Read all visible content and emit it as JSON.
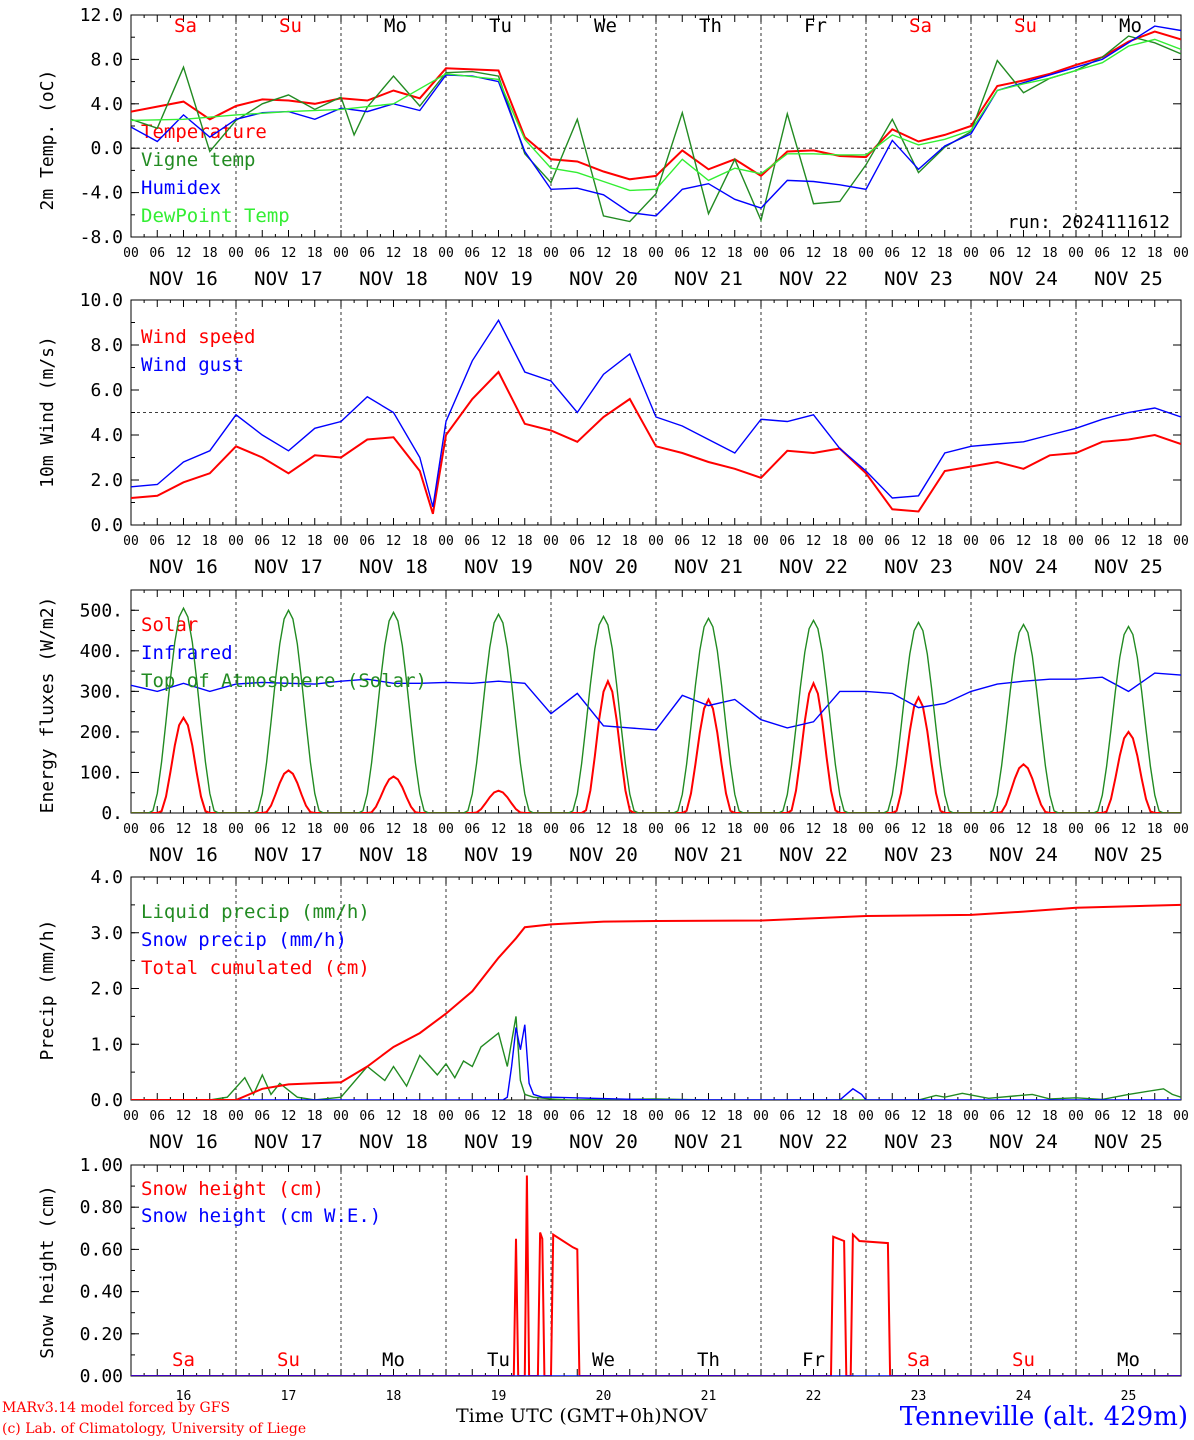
{
  "colors": {
    "red": "#ff0000",
    "green": "#228b22",
    "blue": "#0000ff",
    "lightgreen": "#33ee33",
    "black": "#000000"
  },
  "days": [
    "NOV 16",
    "NOV 17",
    "NOV 18",
    "NOV 19",
    "NOV 20",
    "NOV 21",
    "NOV 22",
    "NOV 23",
    "NOV 24",
    "NOV 25"
  ],
  "hour_ticks": [
    "00",
    "06",
    "12",
    "18"
  ],
  "weekdays": [
    "Sa",
    "Su",
    "Mo",
    "Tu",
    "We",
    "Th",
    "Fr",
    "Sa",
    "Su",
    "Mo"
  ],
  "weekend_flags": [
    true,
    true,
    false,
    false,
    false,
    false,
    false,
    true,
    true,
    false
  ],
  "day_numbers": [
    "16",
    "17",
    "18",
    "19",
    "20",
    "21",
    "22",
    "23",
    "24",
    "25"
  ],
  "footer": {
    "credit_line1": "MARv3.14 model forced by GFS",
    "credit_line2": "(c) Lab. of Climatology, University of Liege",
    "x_title": "Time UTC (GMT+0h)",
    "month": "NOV",
    "location": "Tenneville (alt. 429m)"
  },
  "chart_data": [
    {
      "type": "line",
      "ylabel": "2m Temp. (oC)",
      "ylim": [
        -8,
        12
      ],
      "yticks": [
        "-8.0",
        "-4.0",
        "0.0",
        "4.0",
        "8.0",
        "12.0"
      ],
      "ytick_values": [
        -8,
        -4,
        0,
        4,
        8,
        12
      ],
      "ref_line": 0,
      "annotation": "run: 2024111612",
      "x_unit": "hours since 2024-11-16 00 UTC",
      "series": [
        {
          "name": "Temperature",
          "color": "red",
          "x": [
            0,
            12,
            18,
            24,
            30,
            36,
            42,
            48,
            54,
            60,
            66,
            72,
            78,
            84,
            90,
            96,
            102,
            108,
            114,
            120,
            126,
            132,
            138,
            144,
            150,
            156,
            162,
            168,
            174,
            180,
            186,
            192,
            198,
            204,
            210,
            216,
            222,
            228,
            234,
            240
          ],
          "y": [
            3.3,
            4.2,
            2.6,
            3.8,
            4.4,
            4.3,
            4.0,
            4.5,
            4.3,
            5.2,
            4.5,
            7.2,
            7.1,
            7.0,
            1.0,
            -1.0,
            -1.2,
            -2.1,
            -2.8,
            -2.5,
            -0.2,
            -1.9,
            -1.0,
            -2.5,
            -0.3,
            -0.2,
            -0.7,
            -0.8,
            1.7,
            0.6,
            1.2,
            2.0,
            5.6,
            6.1,
            6.7,
            7.5,
            8.2,
            9.6,
            10.5,
            9.8
          ]
        },
        {
          "name": "Vigne temp",
          "color": "green",
          "x": [
            0,
            6,
            12,
            18,
            24,
            30,
            36,
            42,
            48,
            51,
            54,
            60,
            66,
            72,
            78,
            84,
            90,
            96,
            102,
            108,
            114,
            120,
            126,
            132,
            138,
            144,
            150,
            156,
            162,
            168,
            174,
            180,
            186,
            192,
            198,
            204,
            210,
            216,
            222,
            228,
            234,
            240
          ],
          "y": [
            2.6,
            1.8,
            7.3,
            -0.3,
            2.5,
            4.0,
            4.8,
            3.5,
            4.6,
            1.2,
            3.7,
            6.5,
            3.8,
            6.8,
            6.9,
            6.5,
            -0.5,
            -3.1,
            2.6,
            -6.1,
            -6.6,
            -4.1,
            3.2,
            -5.9,
            -1.0,
            -6.5,
            3.1,
            -5.0,
            -4.8,
            -1.5,
            2.6,
            -2.2,
            0.1,
            1.5,
            7.9,
            5.0,
            6.3,
            7.0,
            8.2,
            10.1,
            9.5,
            8.5
          ]
        },
        {
          "name": "Humidex",
          "color": "blue",
          "x": [
            0,
            6,
            12,
            18,
            24,
            30,
            36,
            42,
            48,
            54,
            60,
            66,
            72,
            78,
            84,
            90,
            96,
            102,
            108,
            114,
            120,
            126,
            132,
            138,
            144,
            150,
            156,
            162,
            168,
            174,
            180,
            186,
            192,
            198,
            204,
            210,
            216,
            222,
            228,
            234,
            240
          ],
          "y": [
            1.9,
            0.6,
            3.0,
            1.0,
            2.6,
            3.2,
            3.3,
            2.6,
            3.6,
            3.3,
            4.0,
            3.4,
            6.6,
            6.5,
            6.0,
            -0.3,
            -3.7,
            -3.6,
            -4.2,
            -5.8,
            -6.1,
            -3.7,
            -3.2,
            -4.6,
            -5.4,
            -2.9,
            -3.0,
            -3.3,
            -3.7,
            0.7,
            -1.9,
            0.2,
            1.3,
            5.2,
            5.9,
            6.6,
            7.3,
            8.0,
            9.5,
            11.0,
            10.6
          ]
        },
        {
          "name": "DewPoint Temp",
          "color": "lightgreen",
          "x": [
            0,
            12,
            24,
            36,
            48,
            60,
            72,
            84,
            90,
            96,
            102,
            108,
            114,
            120,
            126,
            132,
            138,
            144,
            150,
            156,
            162,
            168,
            174,
            180,
            186,
            192,
            198,
            204,
            210,
            216,
            222,
            228,
            234,
            240
          ],
          "y": [
            2.5,
            2.6,
            3.0,
            3.3,
            3.5,
            4.0,
            6.7,
            6.2,
            0.8,
            -1.8,
            -2.2,
            -3.0,
            -3.8,
            -3.7,
            -1.0,
            -2.9,
            -1.8,
            -2.3,
            -0.5,
            -0.5,
            -0.6,
            -0.6,
            1.2,
            0.3,
            0.8,
            1.6,
            5.2,
            5.8,
            6.3,
            7.0,
            7.7,
            9.2,
            9.8,
            8.9
          ]
        }
      ]
    },
    {
      "type": "line",
      "ylabel": "10m Wind (m/s)",
      "ylim": [
        0,
        10
      ],
      "yticks": [
        "0.0",
        "2.0",
        "4.0",
        "6.0",
        "8.0",
        "10.0"
      ],
      "ytick_values": [
        0,
        2,
        4,
        6,
        8,
        10
      ],
      "ref_line": 5,
      "x_unit": "hours since 2024-11-16 00 UTC",
      "series": [
        {
          "name": "Wind speed",
          "color": "red",
          "x": [
            0,
            6,
            12,
            18,
            24,
            30,
            36,
            42,
            48,
            54,
            60,
            66,
            69,
            72,
            78,
            84,
            90,
            96,
            102,
            108,
            114,
            120,
            126,
            132,
            138,
            144,
            150,
            156,
            162,
            168,
            174,
            180,
            186,
            192,
            198,
            204,
            210,
            216,
            222,
            228,
            234,
            240
          ],
          "y": [
            1.2,
            1.3,
            1.9,
            2.3,
            3.5,
            3.0,
            2.3,
            3.1,
            3.0,
            3.8,
            3.9,
            2.4,
            0.5,
            4.0,
            5.6,
            6.8,
            4.5,
            4.2,
            3.7,
            4.8,
            5.6,
            3.5,
            3.2,
            2.8,
            2.5,
            2.1,
            3.3,
            3.2,
            3.4,
            2.3,
            0.7,
            0.6,
            2.4,
            2.6,
            2.8,
            2.5,
            3.1,
            3.2,
            3.7,
            3.8,
            4.0,
            3.6
          ]
        },
        {
          "name": "Wind gust",
          "color": "blue",
          "x": [
            0,
            6,
            12,
            18,
            24,
            30,
            36,
            42,
            48,
            54,
            60,
            66,
            69,
            72,
            78,
            84,
            90,
            96,
            102,
            108,
            114,
            120,
            126,
            132,
            138,
            144,
            150,
            156,
            162,
            168,
            174,
            180,
            186,
            192,
            198,
            204,
            210,
            216,
            222,
            228,
            234,
            240
          ],
          "y": [
            1.7,
            1.8,
            2.8,
            3.3,
            4.9,
            4.0,
            3.3,
            4.3,
            4.6,
            5.7,
            5.0,
            3.0,
            0.8,
            4.6,
            7.3,
            9.1,
            6.8,
            6.4,
            5.0,
            6.7,
            7.6,
            4.8,
            4.4,
            3.8,
            3.2,
            4.7,
            4.6,
            4.9,
            3.4,
            2.4,
            1.2,
            1.3,
            3.2,
            3.5,
            3.6,
            3.7,
            4.0,
            4.3,
            4.7,
            5.0,
            5.2,
            4.8
          ]
        }
      ]
    },
    {
      "type": "line",
      "ylabel": "Energy fluxes (W/m2)",
      "ylim": [
        0,
        550
      ],
      "yticks": [
        "0.",
        "100.",
        "200.",
        "300.",
        "400.",
        "500."
      ],
      "ytick_values": [
        0,
        100,
        200,
        300,
        400,
        500
      ],
      "x_unit": "hours since 2024-11-16 00 UTC",
      "series": [
        {
          "name": "Solar",
          "color": "red",
          "peak_hours": [
            12,
            36,
            60,
            84,
            109,
            132,
            156,
            180,
            204,
            228
          ],
          "peaks": [
            235,
            105,
            90,
            55,
            325,
            280,
            320,
            285,
            120,
            200
          ]
        },
        {
          "name": "Infrared",
          "color": "blue",
          "x": [
            0,
            6,
            12,
            18,
            24,
            30,
            36,
            42,
            48,
            54,
            60,
            66,
            72,
            78,
            84,
            90,
            96,
            102,
            108,
            114,
            120,
            126,
            132,
            138,
            144,
            150,
            156,
            162,
            168,
            174,
            180,
            186,
            192,
            198,
            204,
            210,
            216,
            222,
            228,
            234,
            240
          ],
          "y": [
            315,
            300,
            320,
            300,
            318,
            322,
            320,
            318,
            325,
            330,
            320,
            320,
            322,
            320,
            325,
            320,
            245,
            295,
            215,
            210,
            205,
            290,
            265,
            280,
            230,
            210,
            225,
            300,
            300,
            295,
            260,
            270,
            300,
            318,
            325,
            330,
            330,
            335,
            300,
            345,
            340
          ]
        },
        {
          "name": "Top of Atmosphere (Solar)",
          "color": "green",
          "peak_hours": [
            12,
            36,
            60,
            84,
            108,
            132,
            156,
            180,
            204,
            228
          ],
          "peaks": [
            505,
            500,
            495,
            490,
            485,
            480,
            475,
            470,
            465,
            460
          ]
        }
      ]
    },
    {
      "type": "line",
      "ylabel": "Precip (mm/h)",
      "ylim": [
        0,
        4
      ],
      "yticks": [
        "0.0",
        "1.0",
        "2.0",
        "3.0",
        "4.0"
      ],
      "ytick_values": [
        0,
        1,
        2,
        3,
        4
      ],
      "x_unit": "hours since 2024-11-16 00 UTC",
      "series": [
        {
          "name": "Liquid precip (mm/h)",
          "color": "green",
          "x": [
            0,
            18,
            22,
            26,
            28,
            30,
            32,
            34,
            38,
            42,
            48,
            54,
            58,
            60,
            63,
            66,
            70,
            72,
            74,
            76,
            78,
            80,
            84,
            86,
            88,
            89,
            90,
            92,
            96,
            100,
            120,
            132,
            168,
            180,
            184,
            186,
            190,
            196,
            206,
            210,
            216,
            222,
            228,
            236,
            238,
            240
          ],
          "y": [
            0,
            0,
            0.05,
            0.4,
            0.1,
            0.45,
            0.1,
            0.3,
            0.05,
            0,
            0.05,
            0.6,
            0.35,
            0.6,
            0.25,
            0.8,
            0.45,
            0.65,
            0.4,
            0.7,
            0.6,
            0.95,
            1.2,
            0.6,
            1.5,
            0.35,
            0.1,
            0.05,
            0.02,
            0,
            0.02,
            0,
            0,
            0,
            0.08,
            0.05,
            0.12,
            0.03,
            0.1,
            0.02,
            0.04,
            0.01,
            0.1,
            0.2,
            0.1,
            0.05
          ]
        },
        {
          "name": "Snow precip (mm/h)",
          "color": "blue",
          "x": [
            0,
            85,
            86,
            87,
            88,
            89,
            90,
            91,
            92,
            94,
            96,
            120,
            162,
            165,
            167,
            168,
            240
          ],
          "y": [
            0,
            0,
            0.05,
            0.6,
            1.3,
            0.9,
            1.35,
            0.3,
            0.1,
            0.05,
            0.05,
            0,
            0,
            0.2,
            0.1,
            0,
            0
          ]
        },
        {
          "name": "Total cumulated (cm)",
          "color": "red",
          "x": [
            0,
            24,
            30,
            36,
            42,
            48,
            54,
            60,
            66,
            72,
            78,
            84,
            88,
            90,
            96,
            108,
            120,
            144,
            168,
            192,
            204,
            216,
            240
          ],
          "y": [
            0,
            0,
            0.2,
            0.28,
            0.3,
            0.32,
            0.6,
            0.95,
            1.2,
            1.55,
            1.95,
            2.55,
            2.9,
            3.1,
            3.15,
            3.2,
            3.21,
            3.22,
            3.3,
            3.32,
            3.38,
            3.45,
            3.5
          ]
        }
      ]
    },
    {
      "type": "line",
      "ylabel": "Snow height (cm)",
      "ylim": [
        0,
        1
      ],
      "yticks": [
        "0.00",
        "0.20",
        "0.40",
        "0.60",
        "0.80",
        "1.00"
      ],
      "ytick_values": [
        0,
        0.2,
        0.4,
        0.6,
        0.8,
        1.0
      ],
      "x_unit": "hours since 2024-11-16 00 UTC",
      "series": [
        {
          "name": "Snow height (cm)",
          "color": "red",
          "x": [
            0,
            87.5,
            88,
            88.5,
            90,
            90.5,
            91,
            91.4,
            93,
            93.5,
            94,
            94.5,
            96,
            96.5,
            101,
            102,
            102.5,
            160,
            160.5,
            163,
            163.5,
            164,
            164.5,
            165,
            165.5,
            166,
            166.5,
            173,
            173.5,
            240
          ],
          "y": [
            0,
            0,
            0.65,
            0,
            0,
            0.95,
            0,
            0,
            0,
            0.68,
            0.65,
            0,
            0,
            0.67,
            0.61,
            0.6,
            0,
            0,
            0.66,
            0.64,
            0,
            0,
            0,
            0.67,
            0.66,
            0.65,
            0.64,
            0.63,
            0,
            0
          ]
        },
        {
          "name": "Snow height (cm W.E.)",
          "color": "blue",
          "x": [
            0,
            240
          ],
          "y": [
            0,
            0
          ]
        }
      ]
    }
  ]
}
